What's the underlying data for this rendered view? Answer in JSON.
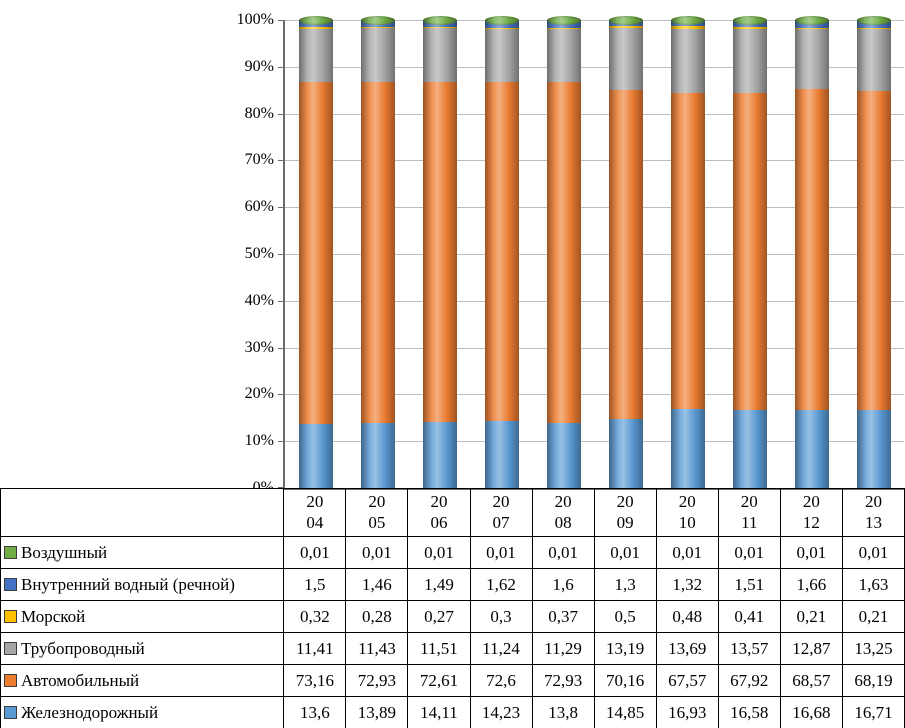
{
  "chart_data": {
    "type": "bar",
    "subtype": "100-percent-stacked-cylinder-3d",
    "title": "",
    "xlabel": "",
    "ylabel": "",
    "ylim": [
      0,
      100
    ],
    "grid": true,
    "legend_position": "table-rows-left",
    "value_format": "comma-decimal",
    "y_ticks": [
      "0%",
      "10%",
      "20%",
      "30%",
      "40%",
      "50%",
      "60%",
      "70%",
      "80%",
      "90%",
      "100%"
    ],
    "categories": [
      "2004",
      "2005",
      "2006",
      "2007",
      "2008",
      "2009",
      "2010",
      "2011",
      "2012",
      "2013"
    ],
    "series": [
      {
        "name": "Воздушный",
        "color": "#70AD47",
        "values": [
          "0,01",
          "0,01",
          "0,01",
          "0,01",
          "0,01",
          "0,01",
          "0,01",
          "0,01",
          "0,01",
          "0,01"
        ]
      },
      {
        "name": "Внутренний водный (речной)",
        "color": "#4472C4",
        "values": [
          "1,5",
          "1,46",
          "1,49",
          "1,62",
          "1,6",
          "1,3",
          "1,32",
          "1,51",
          "1,66",
          "1,63"
        ]
      },
      {
        "name": "Морской",
        "color": "#FFC000",
        "values": [
          "0,32",
          "0,28",
          "0,27",
          "0,3",
          "0,37",
          "0,5",
          "0,48",
          "0,41",
          "0,21",
          "0,21"
        ]
      },
      {
        "name": "Трубопроводный",
        "color": "#A6A6A6",
        "values": [
          "11,41",
          "11,43",
          "11,51",
          "11,24",
          "11,29",
          "13,19",
          "13,69",
          "13,57",
          "12,87",
          "13,25"
        ]
      },
      {
        "name": "Автомобильный",
        "color": "#ED7D31",
        "values": [
          "73,16",
          "72,93",
          "72,61",
          "72,6",
          "72,93",
          "70,16",
          "67,57",
          "67,92",
          "68,57",
          "68,19"
        ]
      },
      {
        "name": "Железнодорожный",
        "color": "#5B9BD5",
        "values": [
          "13,6",
          "13,89",
          "14,11",
          "14,23",
          "13,8",
          "14,85",
          "16,93",
          "16,58",
          "16,68",
          "16,71"
        ]
      }
    ]
  },
  "layout_colors": {
    "gridline": "#bdbdbd",
    "axis": "#6b6b6b",
    "table_border": "#000000"
  }
}
